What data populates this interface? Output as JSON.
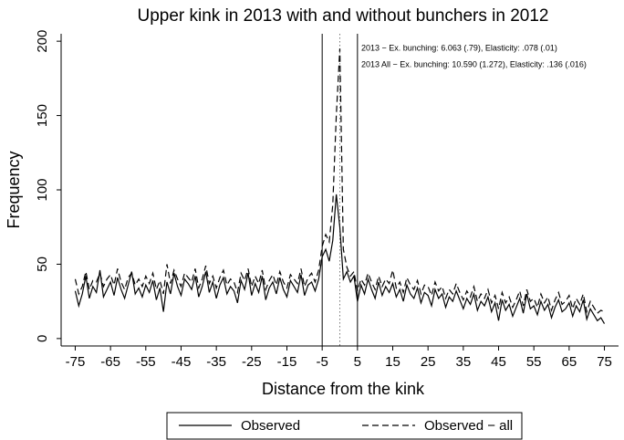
{
  "chart_data": {
    "type": "line",
    "title": "Upper kink in 2013 with and without bunchers in 2012",
    "x_label": "Distance from the kink",
    "y_label": "Frequency",
    "annotations": [
      "2013 − Ex. bunching: 6.063 (.79), Elasticity: .078 (.01)",
      "2013 All − Ex. bunching: 10.590 (1.272), Elasticity: .136 (.016)"
    ],
    "x": [
      -75,
      -74,
      -73,
      -72,
      -71,
      -70,
      -69,
      -68,
      -67,
      -66,
      -65,
      -64,
      -63,
      -62,
      -61,
      -60,
      -59,
      -58,
      -57,
      -56,
      -55,
      -54,
      -53,
      -52,
      -51,
      -50,
      -49,
      -48,
      -47,
      -46,
      -45,
      -44,
      -43,
      -42,
      -41,
      -40,
      -39,
      -38,
      -37,
      -36,
      -35,
      -34,
      -33,
      -32,
      -31,
      -30,
      -29,
      -28,
      -27,
      -26,
      -25,
      -24,
      -23,
      -22,
      -21,
      -20,
      -19,
      -18,
      -17,
      -16,
      -15,
      -14,
      -13,
      -12,
      -11,
      -10,
      -9,
      -8,
      -7,
      -6,
      -5,
      -4,
      -3,
      -2,
      -1,
      0,
      1,
      2,
      3,
      4,
      5,
      6,
      7,
      8,
      9,
      10,
      11,
      12,
      13,
      14,
      15,
      16,
      17,
      18,
      19,
      20,
      21,
      22,
      23,
      24,
      25,
      26,
      27,
      28,
      29,
      30,
      31,
      32,
      33,
      34,
      35,
      36,
      37,
      38,
      39,
      40,
      41,
      42,
      43,
      44,
      45,
      46,
      47,
      48,
      49,
      50,
      51,
      52,
      53,
      54,
      55,
      56,
      57,
      58,
      59,
      60,
      61,
      62,
      63,
      64,
      65,
      66,
      67,
      68,
      69,
      70,
      71,
      72,
      73,
      74,
      75
    ],
    "series": [
      {
        "name": "Observed",
        "color": "#000000",
        "dash": "solid",
        "values": [
          32,
          22,
          30,
          42,
          27,
          35,
          31,
          46,
          28,
          33,
          38,
          29,
          41,
          33,
          27,
          36,
          45,
          30,
          34,
          28,
          36,
          31,
          39,
          26,
          34,
          18,
          38,
          30,
          44,
          35,
          29,
          40,
          37,
          33,
          42,
          28,
          35,
          45,
          31,
          38,
          27,
          36,
          41,
          30,
          35,
          32,
          24,
          39,
          33,
          44,
          29,
          37,
          31,
          42,
          26,
          34,
          38,
          30,
          41,
          33,
          28,
          39,
          35,
          31,
          43,
          29,
          36,
          38,
          32,
          40,
          55,
          60,
          52,
          66,
          97,
          75,
          40,
          45,
          38,
          42,
          25,
          36,
          30,
          40,
          33,
          27,
          38,
          29,
          35,
          31,
          37,
          28,
          33,
          25,
          36,
          30,
          27,
          34,
          24,
          31,
          29,
          22,
          33,
          27,
          30,
          21,
          28,
          25,
          32,
          26,
          20,
          27,
          23,
          30,
          19,
          25,
          22,
          28,
          18,
          24,
          12,
          26,
          19,
          23,
          15,
          21,
          27,
          17,
          30,
          20,
          22,
          16,
          25,
          19,
          23,
          14,
          21,
          26,
          18,
          20,
          24,
          15,
          22,
          18,
          26,
          13,
          20,
          16,
          12,
          14,
          10
        ]
      },
      {
        "name": "Observed − all",
        "color": "#000000",
        "dash": "dashed",
        "values": [
          40,
          30,
          35,
          45,
          33,
          39,
          38,
          44,
          35,
          40,
          43,
          36,
          47,
          38,
          33,
          41,
          44,
          36,
          40,
          35,
          42,
          37,
          44,
          33,
          39,
          30,
          50,
          37,
          46,
          40,
          35,
          44,
          41,
          38,
          47,
          34,
          40,
          49,
          37,
          42,
          34,
          41,
          46,
          36,
          40,
          38,
          31,
          44,
          39,
          47,
          35,
          42,
          37,
          46,
          33,
          39,
          43,
          36,
          45,
          38,
          34,
          43,
          40,
          37,
          47,
          35,
          41,
          44,
          38,
          46,
          62,
          70,
          65,
          90,
          150,
          195,
          60,
          48,
          42,
          45,
          32,
          40,
          36,
          44,
          38,
          33,
          42,
          35,
          40,
          37,
          46,
          34,
          38,
          31,
          41,
          36,
          33,
          39,
          30,
          36,
          35,
          29,
          38,
          32,
          35,
          27,
          33,
          30,
          37,
          31,
          26,
          32,
          28,
          35,
          25,
          30,
          27,
          33,
          24,
          29,
          20,
          31,
          24,
          28,
          21,
          26,
          32,
          22,
          33,
          25,
          27,
          21,
          30,
          24,
          28,
          19,
          26,
          31,
          23,
          25,
          29,
          20,
          27,
          23,
          30,
          18,
          25,
          21,
          17,
          19,
          18
        ]
      }
    ],
    "vlines": [
      {
        "x": -5,
        "style": "solid"
      },
      {
        "x": 0,
        "style": "dotted"
      },
      {
        "x": 5,
        "style": "solid"
      }
    ],
    "xlim": [
      -79,
      79
    ],
    "ylim": [
      -5,
      205
    ],
    "xticks": [
      -75,
      -65,
      -55,
      -45,
      -35,
      -25,
      -15,
      -5,
      5,
      15,
      25,
      35,
      45,
      55,
      65,
      75
    ],
    "yticks": [
      0,
      50,
      100,
      150,
      200
    ],
    "grid": false,
    "legend": "bottom"
  }
}
